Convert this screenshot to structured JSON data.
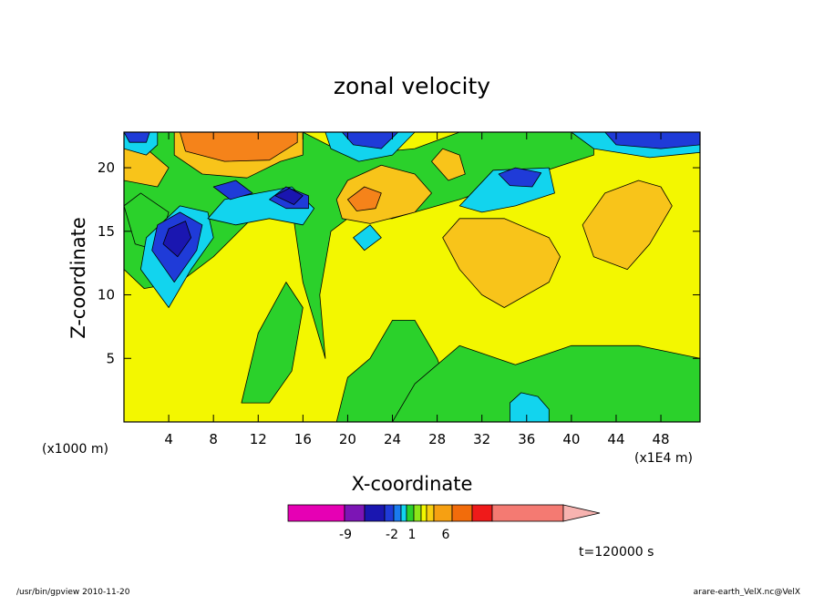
{
  "chart_data": {
    "type": "heatmap",
    "title": "zonal velocity",
    "xlabel": "X-coordinate",
    "ylabel": "Z-coordinate",
    "x_unit_left": "(x1000 m)",
    "x_unit_right": "(x1E4 m)",
    "x_ticks": [
      "4",
      "8",
      "12",
      "16",
      "20",
      "24",
      "28",
      "32",
      "36",
      "40",
      "44",
      "48"
    ],
    "y_ticks": [
      "5",
      "10",
      "15",
      "20"
    ],
    "xlim": [
      0,
      51.5
    ],
    "ylim": [
      0,
      22.8
    ],
    "colorbar": {
      "labels": [
        "-9",
        "-2",
        "1",
        "6"
      ],
      "colors": [
        "#e600b4",
        "#7c15b5",
        "#1a16b0",
        "#1f3bd8",
        "#1a7bf0",
        "#12d4ee",
        "#2bd12b",
        "#8de619",
        "#f3f700",
        "#f8cf10",
        "#f6a012",
        "#f26c0b",
        "#ef1a1a",
        "#f47a72",
        "#f7b3b0"
      ]
    },
    "regions": [
      {
        "level": "yellow",
        "poly": [
          [
            0,
            0
          ],
          [
            51.5,
            0
          ],
          [
            51.5,
            22.8
          ],
          [
            0,
            22.8
          ]
        ]
      },
      {
        "level": "green",
        "poly": [
          [
            0,
            22.8
          ],
          [
            16,
            22.8
          ],
          [
            20,
            21
          ],
          [
            26,
            21.5
          ],
          [
            30,
            22.8
          ],
          [
            42,
            22.8
          ],
          [
            42,
            21
          ],
          [
            35,
            19
          ],
          [
            30,
            17.5
          ],
          [
            24,
            16
          ],
          [
            20,
            16
          ],
          [
            18.5,
            15
          ],
          [
            17.5,
            10
          ],
          [
            18,
            5
          ],
          [
            16,
            11
          ],
          [
            15,
            17
          ],
          [
            12,
            16.5
          ],
          [
            8,
            13
          ],
          [
            5,
            11
          ],
          [
            1.8,
            10.5
          ],
          [
            0,
            12
          ]
        ]
      },
      {
        "level": "green",
        "poly": [
          [
            0,
            17
          ],
          [
            1,
            14
          ],
          [
            3,
            13.5
          ],
          [
            4,
            16.5
          ],
          [
            1.5,
            18
          ]
        ]
      },
      {
        "level": "green",
        "poly": [
          [
            19,
            0
          ],
          [
            30,
            0
          ],
          [
            28,
            5
          ],
          [
            26,
            8
          ],
          [
            24,
            8
          ],
          [
            22,
            5
          ],
          [
            20,
            3.5
          ]
        ]
      },
      {
        "level": "green",
        "poly": [
          [
            24,
            0
          ],
          [
            51.5,
            0
          ],
          [
            51.5,
            5
          ],
          [
            46,
            6
          ],
          [
            40,
            6
          ],
          [
            35,
            4.5
          ],
          [
            30,
            6
          ],
          [
            26,
            3
          ]
        ]
      },
      {
        "level": "green",
        "poly": [
          [
            10.5,
            1.5
          ],
          [
            12,
            7
          ],
          [
            14.5,
            11
          ],
          [
            16,
            9
          ],
          [
            15,
            4
          ],
          [
            13,
            1.5
          ]
        ]
      },
      {
        "level": "orange",
        "poly": [
          [
            41,
            15.5
          ],
          [
            43,
            18
          ],
          [
            46,
            19
          ],
          [
            48,
            18.5
          ],
          [
            49,
            17
          ],
          [
            47,
            14
          ],
          [
            45,
            12
          ],
          [
            42,
            13
          ]
        ]
      },
      {
        "level": "orange",
        "poly": [
          [
            28.5,
            14.5
          ],
          [
            30,
            16
          ],
          [
            34,
            16
          ],
          [
            38,
            14.5
          ],
          [
            39,
            13
          ],
          [
            38,
            11
          ],
          [
            36,
            10
          ],
          [
            34,
            9
          ],
          [
            32,
            10
          ],
          [
            30,
            12
          ]
        ]
      },
      {
        "level": "orange",
        "poly": [
          [
            0,
            19
          ],
          [
            3,
            18.5
          ],
          [
            4,
            20
          ],
          [
            2,
            21.5
          ],
          [
            0,
            21.5
          ]
        ]
      },
      {
        "level": "orange",
        "poly": [
          [
            4.5,
            21
          ],
          [
            7,
            19.5
          ],
          [
            11,
            19.2
          ],
          [
            14,
            20.5
          ],
          [
            16,
            21
          ],
          [
            16,
            22.8
          ],
          [
            4.5,
            22.8
          ]
        ]
      },
      {
        "level": "dark-orange",
        "poly": [
          [
            5,
            22.8
          ],
          [
            5.5,
            21.3
          ],
          [
            9,
            20.5
          ],
          [
            13,
            20.6
          ],
          [
            15.5,
            22
          ],
          [
            15.5,
            22.8
          ]
        ]
      },
      {
        "level": "orange",
        "poly": [
          [
            19,
            17.5
          ],
          [
            20,
            19
          ],
          [
            23,
            20.2
          ],
          [
            26,
            19.5
          ],
          [
            27.5,
            18
          ],
          [
            26,
            16.5
          ],
          [
            22,
            15.6
          ],
          [
            19.5,
            16
          ]
        ]
      },
      {
        "level": "dark-orange",
        "poly": [
          [
            20,
            17.5
          ],
          [
            21.5,
            18.5
          ],
          [
            23,
            18
          ],
          [
            22.5,
            16.8
          ],
          [
            20.8,
            16.6
          ]
        ]
      },
      {
        "level": "orange",
        "poly": [
          [
            27.5,
            20.5
          ],
          [
            28.5,
            21.5
          ],
          [
            30,
            21
          ],
          [
            30.5,
            19.5
          ],
          [
            29,
            19
          ]
        ]
      },
      {
        "level": "cyan",
        "poly": [
          [
            1.5,
            12
          ],
          [
            4,
            9
          ],
          [
            6,
            12
          ],
          [
            8,
            14.5
          ],
          [
            7.5,
            16.5
          ],
          [
            5,
            17
          ],
          [
            2,
            14.5
          ]
        ]
      },
      {
        "level": "blue",
        "poly": [
          [
            2.5,
            13.5
          ],
          [
            4.5,
            11
          ],
          [
            6.5,
            13.5
          ],
          [
            7,
            15.5
          ],
          [
            5,
            16.5
          ],
          [
            3,
            15.5
          ]
        ]
      },
      {
        "level": "dark-blue",
        "poly": [
          [
            3.5,
            14
          ],
          [
            4.8,
            13
          ],
          [
            6,
            14.5
          ],
          [
            5.5,
            15.8
          ],
          [
            4,
            15.2
          ]
        ]
      },
      {
        "level": "cyan",
        "poly": [
          [
            7.5,
            16
          ],
          [
            9,
            17.5
          ],
          [
            12,
            18
          ],
          [
            15,
            18.5
          ],
          [
            17,
            16.8
          ],
          [
            16,
            15.5
          ],
          [
            13,
            16
          ],
          [
            10,
            15.5
          ]
        ]
      },
      {
        "level": "blue",
        "poly": [
          [
            13,
            17.5
          ],
          [
            14.5,
            18.5
          ],
          [
            16.5,
            17.8
          ],
          [
            16.5,
            16.8
          ],
          [
            14.5,
            16.8
          ]
        ]
      },
      {
        "level": "dark-blue",
        "poly": [
          [
            13.5,
            17.8
          ],
          [
            14.8,
            18.4
          ],
          [
            16,
            17.8
          ],
          [
            15.2,
            17.1
          ]
        ]
      },
      {
        "level": "blue",
        "poly": [
          [
            8,
            18.5
          ],
          [
            10,
            19
          ],
          [
            11.5,
            18
          ],
          [
            9.5,
            17.5
          ]
        ]
      },
      {
        "level": "cyan",
        "poly": [
          [
            20.5,
            14.5
          ],
          [
            21.5,
            13.5
          ],
          [
            23,
            14.5
          ],
          [
            22,
            15.5
          ]
        ]
      },
      {
        "level": "cyan",
        "poly": [
          [
            30,
            17
          ],
          [
            33,
            19.8
          ],
          [
            38,
            20
          ],
          [
            38.5,
            18
          ],
          [
            35,
            17
          ],
          [
            32,
            16.5
          ]
        ]
      },
      {
        "level": "blue",
        "poly": [
          [
            33.5,
            19.5
          ],
          [
            35,
            20
          ],
          [
            37.3,
            19.6
          ],
          [
            36.5,
            18.5
          ],
          [
            34.5,
            18.6
          ]
        ]
      },
      {
        "level": "cyan",
        "poly": [
          [
            40,
            22.8
          ],
          [
            42,
            21.5
          ],
          [
            47,
            20.8
          ],
          [
            51.5,
            21.2
          ],
          [
            51.5,
            22.8
          ]
        ]
      },
      {
        "level": "blue",
        "poly": [
          [
            43,
            22.8
          ],
          [
            44,
            21.8
          ],
          [
            48,
            21.5
          ],
          [
            51.5,
            21.8
          ],
          [
            51.5,
            22.8
          ]
        ]
      },
      {
        "level": "cyan",
        "poly": [
          [
            0,
            22.8
          ],
          [
            0,
            21.5
          ],
          [
            2,
            21
          ],
          [
            3,
            21.8
          ],
          [
            3,
            22.8
          ]
        ]
      },
      {
        "level": "blue",
        "poly": [
          [
            0,
            22.8
          ],
          [
            0.5,
            22
          ],
          [
            2,
            22
          ],
          [
            2.3,
            22.8
          ]
        ]
      },
      {
        "level": "cyan",
        "poly": [
          [
            18,
            22.8
          ],
          [
            18.5,
            21.5
          ],
          [
            21,
            20.5
          ],
          [
            24,
            21
          ],
          [
            26,
            22.8
          ]
        ]
      },
      {
        "level": "blue",
        "poly": [
          [
            19.5,
            22.8
          ],
          [
            20.5,
            21.8
          ],
          [
            23,
            21.5
          ],
          [
            24.5,
            22.8
          ]
        ]
      },
      {
        "level": "cyan",
        "poly": [
          [
            34.5,
            0
          ],
          [
            34.5,
            1.5
          ],
          [
            35.5,
            2.3
          ],
          [
            37,
            2
          ],
          [
            38,
            1
          ],
          [
            38,
            0
          ]
        ]
      }
    ],
    "level_colors": {
      "dark-blue": "#1a16b0",
      "blue": "#1f3bd8",
      "cyan": "#12d4ee",
      "green": "#2bd12b",
      "yellow": "#f3f700",
      "orange": "#f8c41a",
      "dark-orange": "#f5831a",
      "red": "#ef1a1a"
    },
    "time_label": "t=120000 s"
  },
  "footer": {
    "left": "/usr/bin/gpview  2010-11-20",
    "right": "arare-earth_VelX.nc@VelX"
  }
}
